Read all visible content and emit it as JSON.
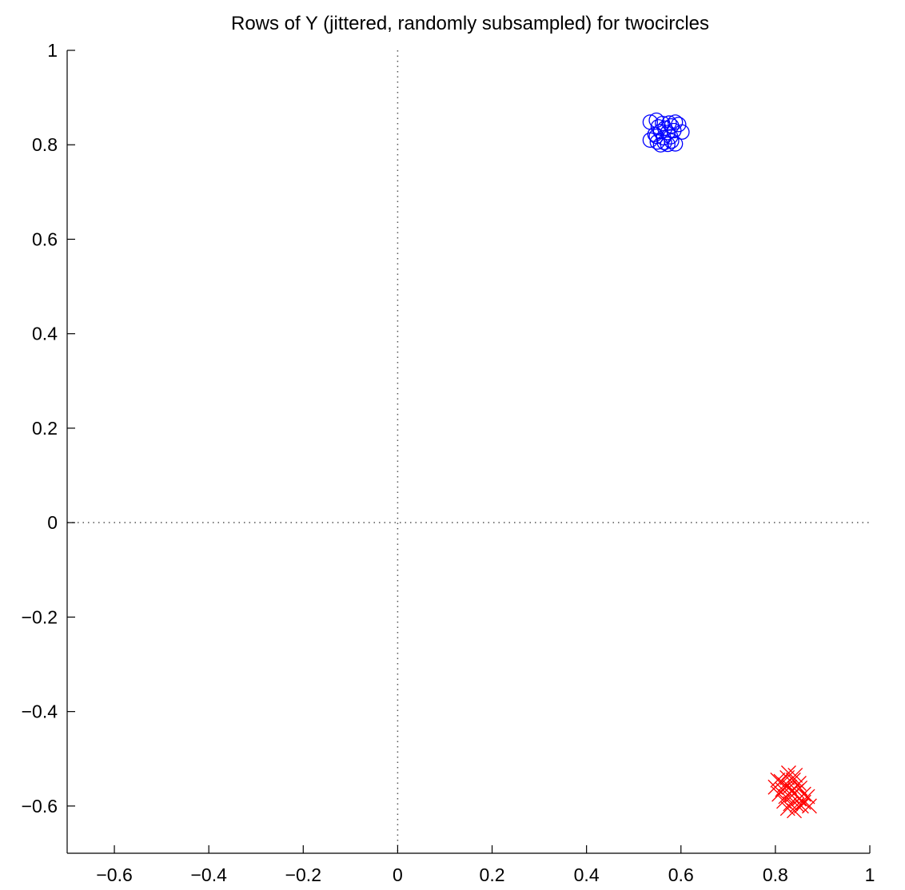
{
  "chart_data": {
    "type": "scatter",
    "title": "Rows of Y (jittered, randomly subsampled) for twocircles",
    "xlabel": "",
    "ylabel": "",
    "xlim": [
      -0.7,
      1.0
    ],
    "ylim": [
      -0.7,
      1.0
    ],
    "xticks": [
      -0.6,
      -0.4,
      -0.2,
      0,
      0.2,
      0.4,
      0.6,
      0.8,
      1
    ],
    "yticks": [
      1,
      0.8,
      0.6,
      0.4,
      0.2,
      0,
      -0.2,
      -0.4,
      -0.6
    ],
    "xtick_labels": [
      "−0.6",
      "−0.4",
      "−0.2",
      "0",
      "0.2",
      "0.4",
      "0.6",
      "0.8",
      "1"
    ],
    "ytick_labels": [
      "1",
      "0.8",
      "0.6",
      "0.4",
      "0.2",
      "0",
      "−0.2",
      "−0.4",
      "−0.6"
    ],
    "zero_lines": true,
    "grid": false,
    "series": [
      {
        "marker": "circle",
        "color": "#0000ff",
        "points": [
          [
            0.535,
            0.848
          ],
          [
            0.548,
            0.852
          ],
          [
            0.561,
            0.845
          ],
          [
            0.575,
            0.846
          ],
          [
            0.588,
            0.848
          ],
          [
            0.552,
            0.838
          ],
          [
            0.566,
            0.835
          ],
          [
            0.58,
            0.84
          ],
          [
            0.595,
            0.843
          ],
          [
            0.557,
            0.828
          ],
          [
            0.572,
            0.826
          ],
          [
            0.585,
            0.83
          ],
          [
            0.602,
            0.827
          ],
          [
            0.548,
            0.818
          ],
          [
            0.563,
            0.815
          ],
          [
            0.578,
            0.817
          ],
          [
            0.535,
            0.81
          ],
          [
            0.55,
            0.806
          ],
          [
            0.565,
            0.805
          ],
          [
            0.58,
            0.808
          ],
          [
            0.557,
            0.8
          ],
          [
            0.572,
            0.801
          ],
          [
            0.588,
            0.802
          ],
          [
            0.545,
            0.822
          ]
        ]
      },
      {
        "marker": "x",
        "color": "#ff0000",
        "points": [
          [
            0.8,
            -0.56
          ],
          [
            0.812,
            -0.548
          ],
          [
            0.825,
            -0.54
          ],
          [
            0.838,
            -0.545
          ],
          [
            0.85,
            -0.552
          ],
          [
            0.815,
            -0.565
          ],
          [
            0.83,
            -0.56
          ],
          [
            0.845,
            -0.568
          ],
          [
            0.86,
            -0.575
          ],
          [
            0.808,
            -0.575
          ],
          [
            0.822,
            -0.58
          ],
          [
            0.835,
            -0.578
          ],
          [
            0.85,
            -0.585
          ],
          [
            0.868,
            -0.58
          ],
          [
            0.818,
            -0.59
          ],
          [
            0.832,
            -0.595
          ],
          [
            0.846,
            -0.598
          ],
          [
            0.86,
            -0.592
          ],
          [
            0.826,
            -0.605
          ],
          [
            0.84,
            -0.61
          ],
          [
            0.855,
            -0.6
          ],
          [
            0.872,
            -0.6
          ],
          [
            0.828,
            -0.53
          ],
          [
            0.842,
            -0.535
          ],
          [
            0.82,
            -0.555
          ],
          [
            0.836,
            -0.568
          ],
          [
            0.805,
            -0.545
          ],
          [
            0.852,
            -0.562
          ]
        ]
      }
    ]
  }
}
